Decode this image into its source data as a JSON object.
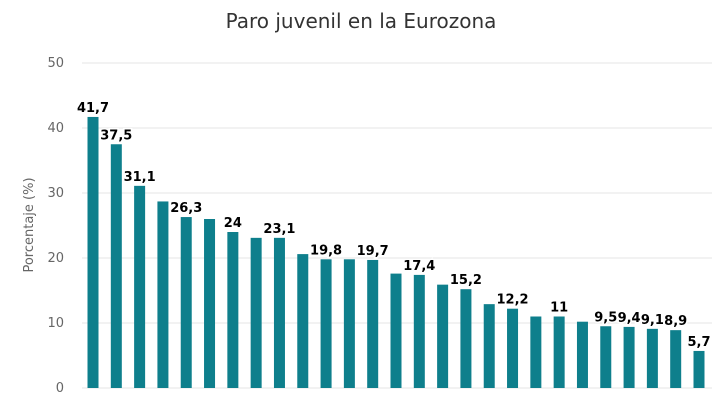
{
  "chart_data": {
    "type": "bar",
    "title": "Paro juvenil en la Eurozona",
    "ylabel": "Porcentaje (%)",
    "xlabel": "",
    "ylim": [
      0,
      50
    ],
    "yticks": [
      "0",
      "10",
      "20",
      "30",
      "40",
      "50"
    ],
    "grid": true,
    "bar_color": "#0e7f8c",
    "values": [
      41.7,
      37.5,
      31.1,
      28.7,
      26.3,
      26.0,
      24,
      23.1,
      23.1,
      20.6,
      19.8,
      19.8,
      19.7,
      17.6,
      17.4,
      15.9,
      15.2,
      12.9,
      12.2,
      11.0,
      11,
      10.2,
      9.5,
      9.4,
      9.1,
      8.9,
      5.7
    ],
    "data_labels": [
      "41,7",
      "37,5",
      "31,1",
      "",
      "26,3",
      "",
      "24",
      "",
      "23,1",
      "",
      "19,8",
      "",
      "19,7",
      "",
      "17,4",
      "",
      "15,2",
      "",
      "12,2",
      "",
      "11",
      "",
      "9,5",
      "9,4",
      "9,1",
      "8,9",
      "5,7"
    ]
  }
}
